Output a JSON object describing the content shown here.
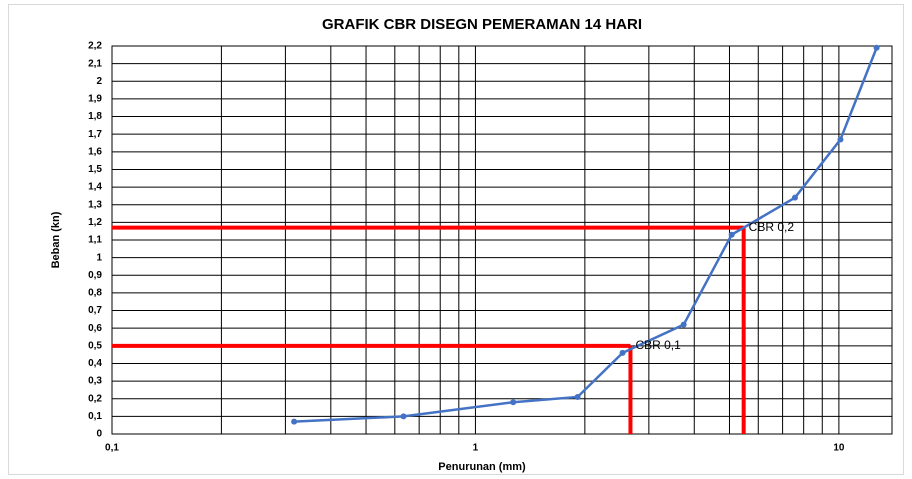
{
  "chart_data": {
    "type": "line",
    "title": "GRAFIK CBR DISEGN PEMERAMAN 14 HARI",
    "x_label": "Penurunan (mm)",
    "y_label": "Beban (kn)",
    "x_scale": "log",
    "grid": true,
    "color": "#4472c4",
    "x": [
      0.317,
      0.634,
      1.27,
      1.91,
      2.54,
      3.74,
      5.07,
      7.57,
      10.1,
      12.7
    ],
    "values": [
      0.07,
      0.1,
      0.18,
      0.21,
      0.46,
      0.62,
      1.13,
      1.34,
      1.67,
      2.19
    ],
    "xlim": [
      0.1,
      14
    ],
    "ylim": [
      0,
      2.2
    ],
    "xticks": [
      {
        "value": 0.1,
        "label": "0,1"
      },
      1,
      10
    ],
    "x_minor_ticks": [
      0.2,
      0.3,
      0.4,
      0.5,
      0.6,
      0.7,
      0.8,
      0.9,
      2,
      3,
      4,
      5,
      6,
      7,
      8,
      9
    ],
    "yticks": [
      0,
      {
        "value": 0.1,
        "label": "0,1"
      },
      {
        "value": 0.2,
        "label": "0,2"
      },
      {
        "value": 0.3,
        "label": "0,3"
      },
      {
        "value": 0.4,
        "label": "0,4"
      },
      {
        "value": 0.5,
        "label": "0,5"
      },
      {
        "value": 0.6,
        "label": "0,6"
      },
      {
        "value": 0.7,
        "label": "0,7"
      },
      {
        "value": 0.8,
        "label": "0,8"
      },
      {
        "value": 0.9,
        "label": "0,9"
      },
      1,
      {
        "value": 1.1,
        "label": "1,1"
      },
      {
        "value": 1.2,
        "label": "1,2"
      },
      {
        "value": 1.3,
        "label": "1,3"
      },
      {
        "value": 1.4,
        "label": "1,4"
      },
      {
        "value": 1.5,
        "label": "1,5"
      },
      {
        "value": 1.6,
        "label": "1,6"
      },
      {
        "value": 1.7,
        "label": "1,7"
      },
      {
        "value": 1.8,
        "label": "1,8"
      },
      {
        "value": 1.9,
        "label": "1,9"
      },
      2,
      {
        "value": 2.1,
        "label": "2,1"
      },
      {
        "value": 2.2,
        "label": "2,2"
      }
    ],
    "reference_lines": [
      {
        "label": "CBR 0,1",
        "x": 2.67,
        "y": 0.5,
        "color": "#ff0000"
      },
      {
        "label": "CBR 0,2",
        "x": 5.47,
        "y": 1.17,
        "color": "#ff0000"
      }
    ]
  }
}
